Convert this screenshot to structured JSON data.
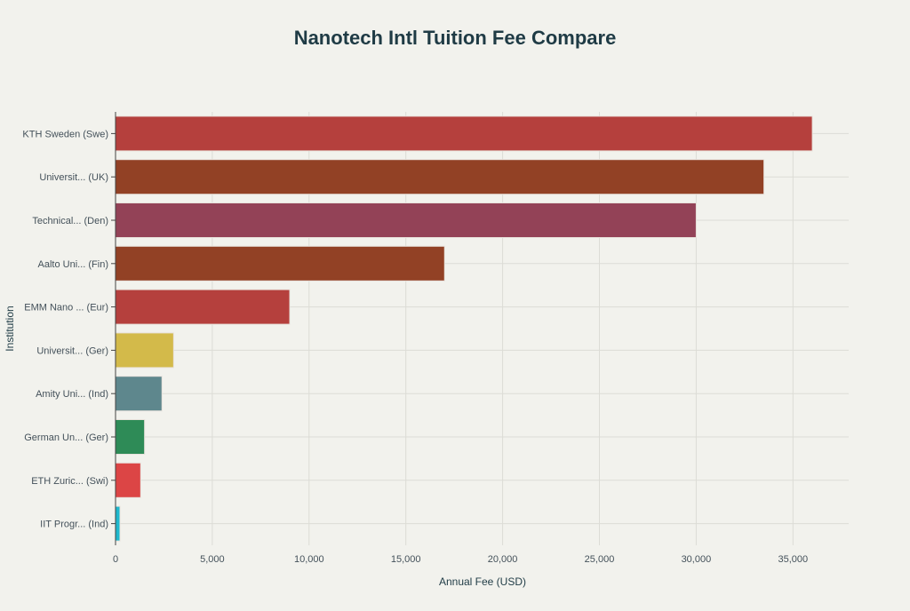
{
  "chart_data": {
    "type": "bar",
    "orientation": "horizontal",
    "title": "Nanotech Intl Tuition Fee Compare",
    "xlabel": "Annual Fee (USD)",
    "ylabel": "Institution",
    "xlim": [
      0,
      38000
    ],
    "xticks": [
      0,
      5000,
      10000,
      15000,
      20000,
      25000,
      30000,
      35000
    ],
    "xtick_labels": [
      "0",
      "5,000",
      "10,000",
      "15,000",
      "20,000",
      "25,000",
      "30,000",
      "35,000"
    ],
    "grid": true,
    "categories": [
      "KTH Sweden (Swe)",
      "Universit... (UK)",
      "Technical... (Den)",
      "Aalto Uni... (Fin)",
      "EMM Nano ... (Eur)",
      "Universit... (Ger)",
      "Amity Uni... (Ind)",
      "German Un... (Ger)",
      "ETH Zuric... (Swi)",
      "IIT Progr... (Ind)"
    ],
    "values": [
      36000,
      33500,
      30000,
      17000,
      9000,
      3000,
      2400,
      1500,
      1300,
      230
    ],
    "colors": [
      "#b5403d",
      "#924125",
      "#934257",
      "#924125",
      "#b5403d",
      "#d3ba4a",
      "#5e878d",
      "#2e8b57",
      "#dc4545",
      "#1fb8cd"
    ]
  }
}
